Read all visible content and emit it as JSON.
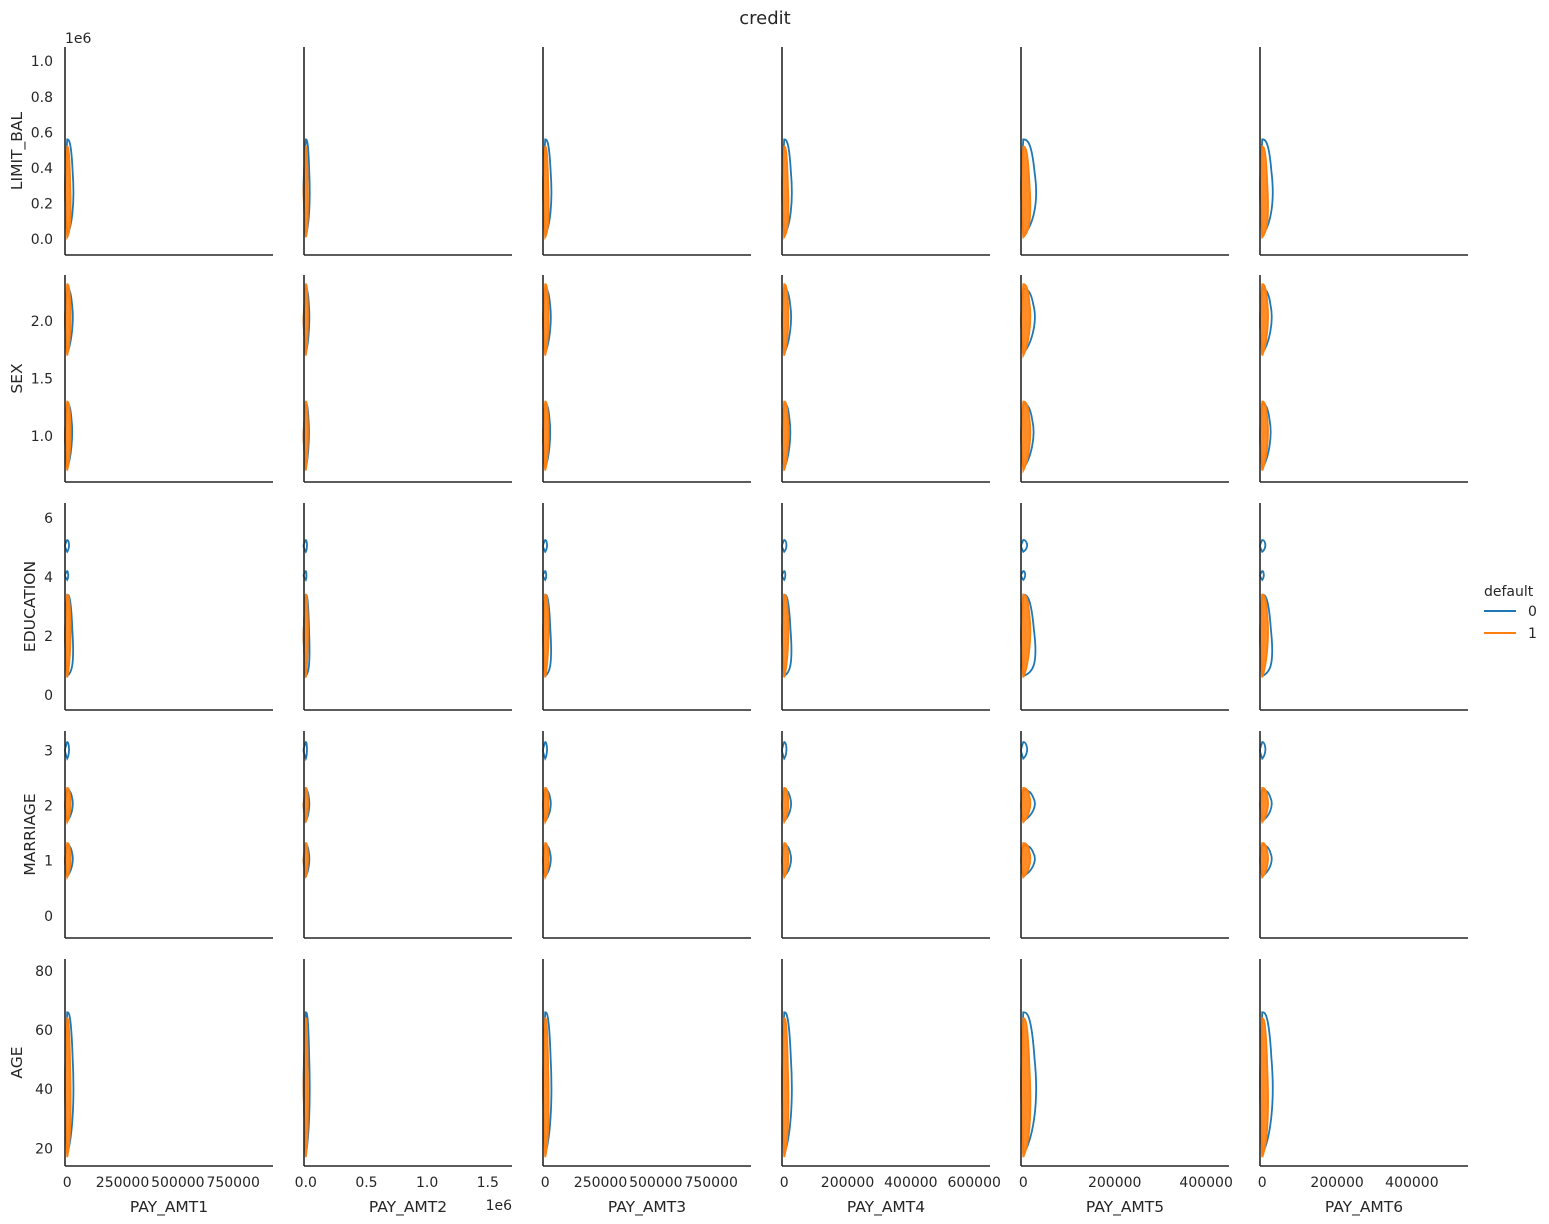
{
  "chart_data": {
    "type": "kde_contour_grid",
    "title": "credit",
    "rows": [
      {
        "var": "LIMIT_BAL",
        "ylim": [
          -90000,
          1080000
        ],
        "ticks": [
          0,
          200000,
          400000,
          600000,
          800000,
          1000000
        ],
        "tick_labels": [
          "0.0",
          "0.2",
          "0.4",
          "0.6",
          "0.8",
          "1.0"
        ],
        "offset_label": "1e6"
      },
      {
        "var": "SEX",
        "ylim": [
          0.6,
          2.4
        ],
        "ticks": [
          1.0,
          1.5,
          2.0
        ],
        "tick_labels": [
          "1.0",
          "1.5",
          "2.0"
        ]
      },
      {
        "var": "EDUCATION",
        "ylim": [
          -0.5,
          6.5
        ],
        "ticks": [
          0,
          2,
          4,
          6
        ],
        "tick_labels": [
          "0",
          "2",
          "4",
          "6"
        ]
      },
      {
        "var": "MARRIAGE",
        "ylim": [
          -0.4,
          3.35
        ],
        "ticks": [
          0,
          1,
          2,
          3
        ],
        "tick_labels": [
          "0",
          "1",
          "2",
          "3"
        ]
      },
      {
        "var": "AGE",
        "ylim": [
          14,
          84
        ],
        "ticks": [
          20,
          40,
          60,
          80
        ],
        "tick_labels": [
          "20",
          "40",
          "60",
          "80"
        ]
      }
    ],
    "columns": [
      {
        "var": "PAY_AMT1",
        "xlim": [
          -10000,
          930000
        ],
        "ticks": [
          0,
          250000,
          500000,
          750000
        ],
        "tick_labels": [
          "0",
          "250000",
          "500000",
          "750000"
        ]
      },
      {
        "var": "PAY_AMT2",
        "xlim": [
          -15000,
          1700000
        ],
        "ticks": [
          0,
          500000,
          1000000,
          1500000
        ],
        "tick_labels": [
          "0.0",
          "0.5",
          "1.0",
          "1.5"
        ],
        "offset_label": "1e6"
      },
      {
        "var": "PAY_AMT3",
        "xlim": [
          -10000,
          930000
        ],
        "ticks": [
          0,
          250000,
          500000,
          750000
        ],
        "tick_labels": [
          "0",
          "250000",
          "500000",
          "750000"
        ]
      },
      {
        "var": "PAY_AMT4",
        "xlim": [
          -7000,
          650000
        ],
        "ticks": [
          0,
          200000,
          400000,
          600000
        ],
        "tick_labels": [
          "0",
          "200000",
          "400000",
          "600000"
        ]
      },
      {
        "var": "PAY_AMT5",
        "xlim": [
          -5000,
          450000
        ],
        "ticks": [
          0,
          200000,
          400000
        ],
        "tick_labels": [
          "0",
          "200000",
          "400000"
        ]
      },
      {
        "var": "PAY_AMT6",
        "xlim": [
          -6000,
          550000
        ],
        "ticks": [
          0,
          200000,
          400000
        ],
        "tick_labels": [
          "0",
          "200000",
          "400000"
        ]
      }
    ],
    "hue": {
      "title": "default",
      "levels": [
        {
          "name": "0",
          "color": "#1f77b4"
        },
        {
          "name": "1",
          "color": "#ff7f0e"
        }
      ]
    },
    "grid": false,
    "legend_position": "right"
  }
}
